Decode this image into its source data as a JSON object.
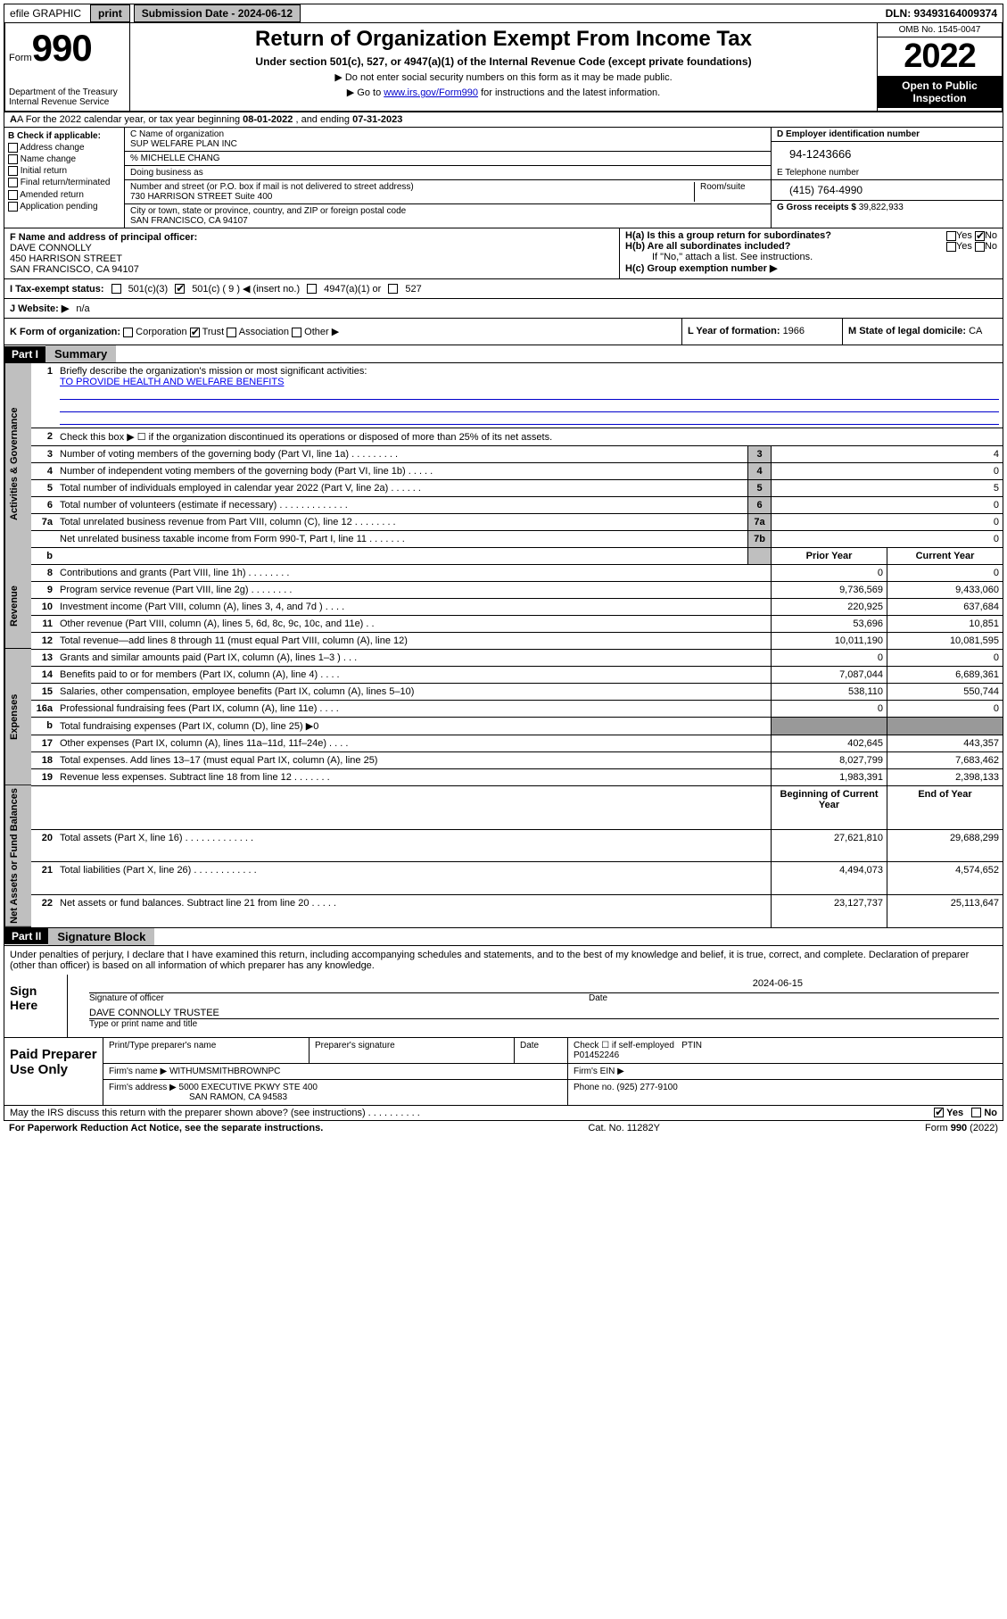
{
  "top": {
    "efile": "efile GRAPHIC",
    "print": "print",
    "sub_label": "Submission Date - 2024-06-12",
    "dln": "DLN: 93493164009374"
  },
  "header": {
    "form_word": "Form",
    "form_num": "990",
    "dept": "Department of the Treasury\nInternal Revenue Service",
    "title": "Return of Organization Exempt From Income Tax",
    "subtitle": "Under section 501(c), 527, or 4947(a)(1) of the Internal Revenue Code (except private foundations)",
    "note1": "▶ Do not enter social security numbers on this form as it may be made public.",
    "note2_pre": "▶ Go to ",
    "note2_link": "www.irs.gov/Form990",
    "note2_post": " for instructions and the latest information.",
    "omb": "OMB No. 1545-0047",
    "year": "2022",
    "open": "Open to Public Inspection"
  },
  "rowA": {
    "pre": "A For the 2022 calendar year, or tax year beginning ",
    "begin": "08-01-2022",
    "mid": " , and ending ",
    "end": "07-31-2023"
  },
  "colB": {
    "title": "B Check if applicable:",
    "items": [
      "Address change",
      "Name change",
      "Initial return",
      "Final return/terminated",
      "Amended return",
      "Application pending"
    ]
  },
  "colC": {
    "c_label": "C Name of organization",
    "c_name": "SUP WELFARE PLAN INC",
    "care": "% MICHELLE CHANG",
    "dba_label": "Doing business as",
    "addr_label": "Number and street (or P.O. box if mail is not delivered to street address)",
    "room_label": "Room/suite",
    "addr": "730 HARRISON STREET Suite 400",
    "city_label": "City or town, state or province, country, and ZIP or foreign postal code",
    "city": "SAN FRANCISCO, CA  94107"
  },
  "colD": {
    "d_label": "D Employer identification number",
    "ein": "94-1243666",
    "e_label": "E Telephone number",
    "phone": "(415) 764-4990",
    "g_label": "G Gross receipts $ ",
    "gross": "39,822,933"
  },
  "rowF": {
    "label": "F Name and address of principal officer:",
    "name": "DAVE CONNOLLY",
    "addr1": "450 HARRISON STREET",
    "addr2": "SAN FRANCISCO, CA  94107"
  },
  "rowH": {
    "ha": "H(a)  Is this a group return for subordinates?",
    "hb": "H(b)  Are all subordinates included?",
    "hb_note": "If \"No,\" attach a list. See instructions.",
    "hc": "H(c)  Group exemption number ▶"
  },
  "rowI": {
    "label": "I  Tax-exempt status:",
    "c3": "501(c)(3)",
    "c": "501(c) ( 9 ) ◀ (insert no.)",
    "a1": "4947(a)(1) or",
    "s527": "527"
  },
  "rowJ": {
    "label": "J  Website: ▶ ",
    "val": "n/a"
  },
  "rowK": {
    "label": "K Form of organization:",
    "opts": [
      "Corporation",
      "Trust",
      "Association",
      "Other ▶"
    ]
  },
  "rowL": {
    "label": "L Year of formation: ",
    "val": "1966"
  },
  "rowM": {
    "label": "M State of legal domicile: ",
    "val": "CA"
  },
  "partI": {
    "tag": "Part I",
    "title": "Summary"
  },
  "summary": {
    "q1": "Briefly describe the organization's mission or most significant activities:",
    "mission": "TO PROVIDE HEALTH AND WELFARE BENEFITS",
    "q2": "Check this box ▶ ☐  if the organization discontinued its operations or disposed of more than 25% of its net assets.",
    "rows_single": [
      {
        "n": "3",
        "d": "Number of voting members of the governing body (Part VI, line 1a)  .    .    .    .    .    .    .    .    .",
        "b": "3",
        "v": "4"
      },
      {
        "n": "4",
        "d": "Number of independent voting members of the governing body (Part VI, line 1b)  .    .    .    .    .",
        "b": "4",
        "v": "0"
      },
      {
        "n": "5",
        "d": "Total number of individuals employed in calendar year 2022 (Part V, line 2a)  .    .    .    .    .    .",
        "b": "5",
        "v": "5"
      },
      {
        "n": "6",
        "d": "Total number of volunteers (estimate if necessary)  .    .    .    .    .    .    .    .    .    .    .    .    .",
        "b": "6",
        "v": "0"
      },
      {
        "n": "7a",
        "d": "Total unrelated business revenue from Part VIII, column (C), line 12  .    .    .    .    .    .    .    .",
        "b": "7a",
        "v": "0"
      },
      {
        "n": "",
        "d": "Net unrelated business taxable income from Form 990-T, Part I, line 11  .    .    .    .    .    .    .",
        "b": "7b",
        "v": "0"
      }
    ],
    "hdr_prior": "Prior Year",
    "hdr_curr": "Current Year",
    "rows_rev": [
      {
        "n": "8",
        "d": "Contributions and grants (Part VIII, line 1h)  .    .    .    .    .    .    .    .",
        "p": "0",
        "c": "0"
      },
      {
        "n": "9",
        "d": "Program service revenue (Part VIII, line 2g)  .    .    .    .    .    .    .    .",
        "p": "9,736,569",
        "c": "9,433,060"
      },
      {
        "n": "10",
        "d": "Investment income (Part VIII, column (A), lines 3, 4, and 7d )  .    .    .    .",
        "p": "220,925",
        "c": "637,684"
      },
      {
        "n": "11",
        "d": "Other revenue (Part VIII, column (A), lines 5, 6d, 8c, 9c, 10c, and 11e)  .    .",
        "p": "53,696",
        "c": "10,851"
      },
      {
        "n": "12",
        "d": "Total revenue—add lines 8 through 11 (must equal Part VIII, column (A), line 12)",
        "p": "10,011,190",
        "c": "10,081,595"
      }
    ],
    "rows_exp": [
      {
        "n": "13",
        "d": "Grants and similar amounts paid (Part IX, column (A), lines 1–3 )  .    .    .",
        "p": "0",
        "c": "0"
      },
      {
        "n": "14",
        "d": "Benefits paid to or for members (Part IX, column (A), line 4)  .    .    .    .",
        "p": "7,087,044",
        "c": "6,689,361"
      },
      {
        "n": "15",
        "d": "Salaries, other compensation, employee benefits (Part IX, column (A), lines 5–10)",
        "p": "538,110",
        "c": "550,744"
      },
      {
        "n": "16a",
        "d": "Professional fundraising fees (Part IX, column (A), line 11e)  .    .    .    .",
        "p": "0",
        "c": "0"
      },
      {
        "n": "b",
        "d": "Total fundraising expenses (Part IX, column (D), line 25) ▶0",
        "p": "",
        "c": "",
        "shade": true
      },
      {
        "n": "17",
        "d": "Other expenses (Part IX, column (A), lines 11a–11d, 11f–24e)  .    .    .    .",
        "p": "402,645",
        "c": "443,357"
      },
      {
        "n": "18",
        "d": "Total expenses. Add lines 13–17 (must equal Part IX, column (A), line 25)",
        "p": "8,027,799",
        "c": "7,683,462"
      },
      {
        "n": "19",
        "d": "Revenue less expenses. Subtract line 18 from line 12  .    .    .    .    .    .    .",
        "p": "1,983,391",
        "c": "2,398,133"
      }
    ],
    "hdr_beg": "Beginning of Current Year",
    "hdr_end": "End of Year",
    "rows_net": [
      {
        "n": "20",
        "d": "Total assets (Part X, line 16)  .    .    .    .    .    .    .    .    .    .    .    .    .",
        "p": "27,621,810",
        "c": "29,688,299"
      },
      {
        "n": "21",
        "d": "Total liabilities (Part X, line 26)  .    .    .    .    .    .    .    .    .    .    .    .",
        "p": "4,494,073",
        "c": "4,574,652"
      },
      {
        "n": "22",
        "d": "Net assets or fund balances. Subtract line 21 from line 20  .    .    .    .    .",
        "p": "23,127,737",
        "c": "25,113,647"
      }
    ],
    "side_labels": [
      "Activities & Governance",
      "Revenue",
      "Expenses",
      "Net Assets or Fund Balances"
    ]
  },
  "partII": {
    "tag": "Part II",
    "title": "Signature Block"
  },
  "sig": {
    "decl": "Under penalties of perjury, I declare that I have examined this return, including accompanying schedules and statements, and to the best of my knowledge and belief, it is true, correct, and complete. Declaration of preparer (other than officer) is based on all information of which preparer has any knowledge.",
    "sign_here": "Sign Here",
    "sig_officer": "Signature of officer",
    "date_lbl": "Date",
    "sig_date": "2024-06-15",
    "name_title": "DAVE CONNOLLY TRUSTEE",
    "type_name": "Type or print name and title"
  },
  "prep": {
    "label": "Paid Preparer Use Only",
    "h1": "Print/Type preparer's name",
    "h2": "Preparer's signature",
    "h3": "Date",
    "h4_chk": "Check ☐ if self-employed",
    "h4_ptin": "PTIN",
    "ptin": "P01452246",
    "firm_lbl": "Firm's name    ▶ ",
    "firm": "WITHUMSMITHBROWNPC",
    "ein_lbl": "Firm's EIN ▶",
    "addr_lbl": "Firm's address ▶ ",
    "addr1": "5000 EXECUTIVE PKWY STE 400",
    "addr2": "SAN RAMON, CA  94583",
    "phone_lbl": "Phone no. ",
    "phone": "(925) 277-9100"
  },
  "foot": {
    "discuss": "May the IRS discuss this return with the preparer shown above? (see instructions)  .    .    .    .    .    .    .    .    .    .",
    "yes": "Yes",
    "no": "No",
    "pra": "For Paperwork Reduction Act Notice, see the separate instructions.",
    "cat": "Cat. No. 11282Y",
    "form": "Form 990 (2022)"
  }
}
